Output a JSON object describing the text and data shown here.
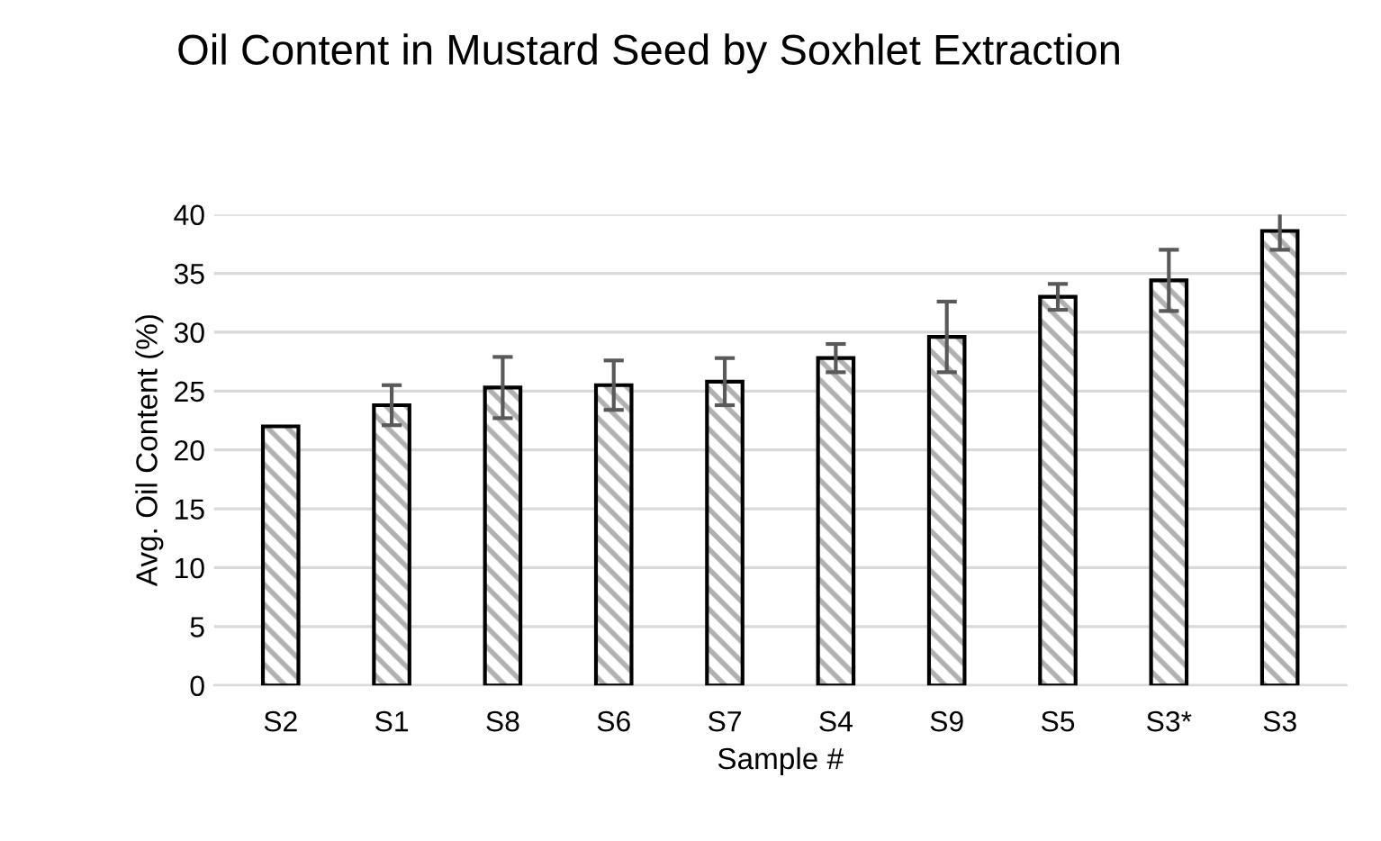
{
  "chart_data": {
    "type": "bar",
    "title": "Oil Content in Mustard Seed by Soxhlet Extraction",
    "xlabel": "Sample #",
    "ylabel": "Avg. Oil Content (%)",
    "categories": [
      "S2",
      "S1",
      "S8",
      "S6",
      "S7",
      "S4",
      "S9",
      "S5",
      "S3*",
      "S3"
    ],
    "values": [
      22.0,
      23.8,
      25.3,
      25.5,
      25.8,
      27.8,
      29.6,
      33.0,
      34.4,
      38.6
    ],
    "errors": [
      null,
      1.7,
      2.6,
      2.1,
      2.0,
      1.2,
      3.0,
      1.1,
      2.6,
      1.6
    ],
    "color": "#b0b0b0",
    "ylim": [
      0,
      40
    ],
    "yticks": [
      0,
      5,
      10,
      15,
      20,
      25,
      30,
      35,
      40
    ],
    "grid": "y",
    "legend": false
  }
}
